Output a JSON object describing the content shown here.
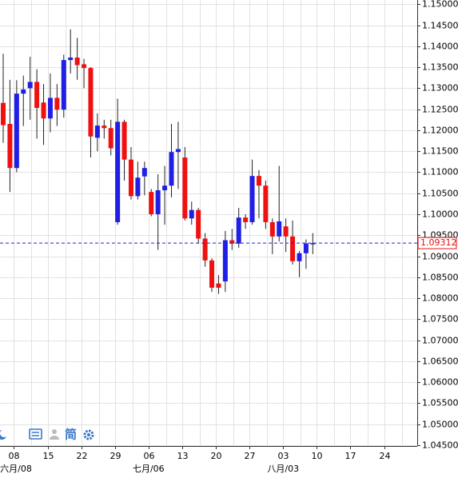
{
  "chart_data": {
    "type": "candlestick",
    "categories": [
      null,
      "08",
      null,
      null,
      null,
      null,
      "15",
      null,
      null,
      null,
      null,
      "22",
      null,
      null,
      null,
      null,
      "29",
      null,
      null,
      null,
      null,
      "06",
      null,
      null,
      null,
      null,
      "13",
      null,
      null,
      null,
      null,
      "20",
      null,
      null,
      null,
      null,
      "27",
      null,
      null,
      null,
      null,
      "03",
      null,
      null,
      null,
      null,
      "10",
      null,
      null,
      null,
      null,
      "17",
      null,
      null,
      null,
      null,
      "24",
      null
    ],
    "month_labels": [
      null,
      "六月/08",
      null,
      null,
      null,
      null,
      null,
      null,
      null,
      null,
      null,
      null,
      null,
      null,
      null,
      null,
      null,
      null,
      null,
      null,
      null,
      "七月/06",
      null,
      null,
      null,
      null,
      null,
      null,
      null,
      null,
      null,
      null,
      null,
      null,
      null,
      null,
      null,
      null,
      null,
      null,
      null,
      "八月/03",
      null,
      null,
      null,
      null,
      null,
      null,
      null,
      null,
      null,
      null,
      null,
      null,
      null,
      null,
      null,
      null
    ],
    "open": [
      1.1265,
      1.1215,
      1.111,
      1.1287,
      1.13,
      1.1315,
      1.1266,
      1.1228,
      1.1277,
      1.1249,
      1.1367,
      1.1373,
      1.1357,
      1.1348,
      1.1182,
      1.1211,
      1.1205,
      1.0981,
      1.122,
      1.113,
      1.1043,
      1.109,
      1.1053,
      1.1,
      1.1057,
      1.1068,
      1.1148,
      1.1135,
      1.099,
      1.101,
      1.0942,
      1.089,
      1.0835,
      1.084,
      1.0938,
      1.093,
      1.0992,
      1.0981,
      1.1091,
      1.1068,
      1.0981,
      1.0947,
      1.0971,
      1.0947,
      1.0888,
      1.0907,
      1.0929,
      null,
      null,
      null,
      null,
      null,
      null,
      null,
      null,
      null,
      null,
      null
    ],
    "high": [
      1.1382,
      1.132,
      1.1319,
      1.133,
      1.1375,
      1.1345,
      1.131,
      1.1335,
      1.131,
      1.138,
      1.144,
      1.142,
      1.137,
      1.135,
      1.124,
      1.1225,
      1.1225,
      1.1275,
      1.1225,
      1.116,
      1.1125,
      1.1125,
      1.106,
      1.1095,
      1.1115,
      1.1215,
      1.122,
      1.116,
      1.103,
      1.1015,
      1.0955,
      1.0895,
      1.0855,
      1.096,
      1.0965,
      1.1015,
      1.1,
      1.113,
      1.1105,
      1.108,
      1.099,
      1.1115,
      1.099,
      1.0985,
      1.0912,
      1.094,
      1.0955,
      null,
      null,
      null,
      null,
      null,
      null,
      null,
      null,
      null,
      null,
      null
    ],
    "low": [
      1.117,
      1.1053,
      1.11,
      1.121,
      1.1225,
      1.118,
      1.1165,
      1.1195,
      1.121,
      1.123,
      1.1335,
      1.132,
      1.13,
      1.1135,
      1.115,
      1.118,
      1.114,
      1.0975,
      1.108,
      1.1035,
      1.1035,
      1.1045,
      1.0995,
      1.0915,
      1.0975,
      1.104,
      1.106,
      1.0985,
      1.0975,
      1.093,
      1.0875,
      1.0815,
      1.081,
      1.0815,
      1.0915,
      1.092,
      1.0965,
      1.0975,
      1.099,
      1.0965,
      1.0905,
      1.0935,
      1.091,
      1.088,
      1.085,
      1.087,
      1.0905,
      null,
      null,
      null,
      null,
      null,
      null,
      null,
      null,
      null,
      null,
      null
    ],
    "close": [
      1.1212,
      1.111,
      1.1287,
      1.1297,
      1.1315,
      1.1253,
      1.1228,
      1.1277,
      1.1249,
      1.1367,
      1.1373,
      1.1355,
      1.1348,
      1.1185,
      1.1211,
      1.1205,
      1.1157,
      1.122,
      1.113,
      1.1043,
      1.1087,
      1.111,
      1.1,
      1.1057,
      1.1068,
      1.1148,
      1.1155,
      1.099,
      1.101,
      1.0942,
      1.089,
      1.0825,
      1.0825,
      1.0938,
      1.093,
      1.0992,
      1.0981,
      1.1091,
      1.1068,
      1.0981,
      1.0947,
      1.0983,
      1.0947,
      1.0888,
      1.0907,
      1.093,
      1.0931,
      null,
      null,
      null,
      null,
      null,
      null,
      null,
      null,
      null,
      null,
      null
    ],
    "up_color": "#1f1fe6",
    "down_color": "#f01010",
    "last_price": 1.09312,
    "last_price_color": "#e01010",
    "last_line_color": "#2020d0",
    "ylim": [
      1.0448,
      1.151
    ],
    "yticks": [
      {
        "value": 1.045,
        "label": "1.04500"
      },
      {
        "value": 1.05,
        "label": "1.05000"
      },
      {
        "value": 1.055,
        "label": "1.05500"
      },
      {
        "value": 1.06,
        "label": "1.06000"
      },
      {
        "value": 1.065,
        "label": "1.06500"
      },
      {
        "value": 1.07,
        "label": "1.07000"
      },
      {
        "value": 1.075,
        "label": "1.07500"
      },
      {
        "value": 1.08,
        "label": "1.08000"
      },
      {
        "value": 1.085,
        "label": "1.08500"
      },
      {
        "value": 1.09,
        "label": "1.09000"
      },
      {
        "value": 1.095,
        "label": "1.09500"
      },
      {
        "value": 1.1,
        "label": "1.10000"
      },
      {
        "value": 1.105,
        "label": "1.10500"
      },
      {
        "value": 1.11,
        "label": "1.11000"
      },
      {
        "value": 1.115,
        "label": "1.11500"
      },
      {
        "value": 1.12,
        "label": "1.12000"
      },
      {
        "value": 1.125,
        "label": "1.12500"
      },
      {
        "value": 1.13,
        "label": "1.13000"
      },
      {
        "value": 1.135,
        "label": "1.13500"
      },
      {
        "value": 1.14,
        "label": "1.14000"
      },
      {
        "value": 1.145,
        "label": "1.14500"
      },
      {
        "value": 1.15,
        "label": "1.15000"
      }
    ],
    "grid": true,
    "toolbar": {
      "simplified": "简"
    }
  }
}
